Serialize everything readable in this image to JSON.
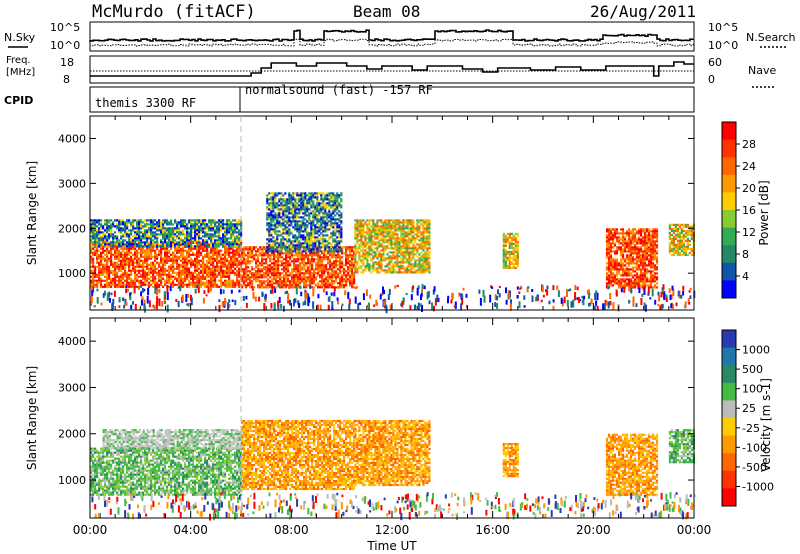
{
  "header": {
    "station": "McMurdo (fitACF)",
    "beam": "Beam 08",
    "date": "26/Aug/2011"
  },
  "top_panels": {
    "nsky_label": "N.Sky",
    "nsky_ticks": [
      "10^5",
      "10^0"
    ],
    "nsearch_label": "N.Search",
    "freq_label_1": "Freq.",
    "freq_label_2": "[MHz]",
    "freq_ticks": [
      "18",
      "8"
    ],
    "nave_label": "Nave",
    "nave_ticks": [
      "60",
      "0"
    ],
    "cpid_label": "CPID",
    "cpid_1": "themis 3300 RF",
    "cpid_2": "normalsound (fast) -157 RF"
  },
  "axes": {
    "ylabel": "Slant Range [km]",
    "yticks": [
      "4000",
      "3000",
      "2000",
      "1000"
    ],
    "xticks": [
      "00:00",
      "04:00",
      "08:00",
      "12:00",
      "16:00",
      "20:00",
      "00:00"
    ],
    "xlabel": "Time UT"
  },
  "colorbars": {
    "power": {
      "label": "Power [dB]",
      "ticks": [
        "28",
        "24",
        "20",
        "16",
        "12",
        "8",
        "4"
      ],
      "colors": [
        "#ff0000",
        "#ff3300",
        "#ff6600",
        "#ff9900",
        "#ffcc00",
        "#88cc33",
        "#33aa55",
        "#228866",
        "#1155aa",
        "#0000ff"
      ]
    },
    "velocity": {
      "label": "Velocity [m s-1]",
      "ticks": [
        "1000",
        "500",
        "100",
        "25",
        "-25",
        "-100",
        "-500",
        "-1000"
      ],
      "colors": [
        "#2a3ab0",
        "#2277aa",
        "#2a8866",
        "#44bb44",
        "#bbbbbb",
        "#ffcc00",
        "#ff9900",
        "#ff6600",
        "#ff3300",
        "#ff0000"
      ]
    }
  },
  "chart_data": {
    "type": "heatmap",
    "x_hours": [
      0,
      24
    ],
    "y_km": [
      180,
      4500
    ],
    "power_patches": [
      {
        "t0": 0.0,
        "t1": 6.0,
        "r0": 700,
        "r1": 1700,
        "level": "high"
      },
      {
        "t0": 0.0,
        "t1": 6.0,
        "r0": 1600,
        "r1": 2200,
        "level": "low"
      },
      {
        "t0": 6.0,
        "t1": 10.5,
        "r0": 700,
        "r1": 1600,
        "level": "high"
      },
      {
        "t0": 7.0,
        "t1": 10.0,
        "r0": 1500,
        "r1": 2800,
        "level": "low"
      },
      {
        "t0": 10.5,
        "t1": 13.5,
        "r0": 1000,
        "r1": 2200,
        "level": "mid"
      },
      {
        "t0": 16.4,
        "t1": 17.0,
        "r0": 1100,
        "r1": 1900,
        "level": "mid"
      },
      {
        "t0": 20.5,
        "t1": 22.5,
        "r0": 700,
        "r1": 2000,
        "level": "high"
      },
      {
        "t0": 23.0,
        "t1": 24.0,
        "r0": 1400,
        "r1": 2100,
        "level": "mid"
      }
    ],
    "velocity_patches": [
      {
        "t0": 0.0,
        "t1": 6.0,
        "r0": 700,
        "r1": 1700,
        "level": "100"
      },
      {
        "t0": 0.5,
        "t1": 6.0,
        "r0": 1700,
        "r1": 2100,
        "level": "25"
      },
      {
        "t0": 6.0,
        "t1": 10.5,
        "r0": 800,
        "r1": 2300,
        "level": "-100"
      },
      {
        "t0": 10.5,
        "t1": 13.5,
        "r0": 900,
        "r1": 2300,
        "level": "-100"
      },
      {
        "t0": 16.4,
        "t1": 17.0,
        "r0": 1100,
        "r1": 1800,
        "level": "-100"
      },
      {
        "t0": 20.5,
        "t1": 22.5,
        "r0": 700,
        "r1": 2000,
        "level": "-100"
      },
      {
        "t0": 23.0,
        "t1": 24.0,
        "r0": 1400,
        "r1": 2100,
        "level": "100"
      }
    ]
  }
}
